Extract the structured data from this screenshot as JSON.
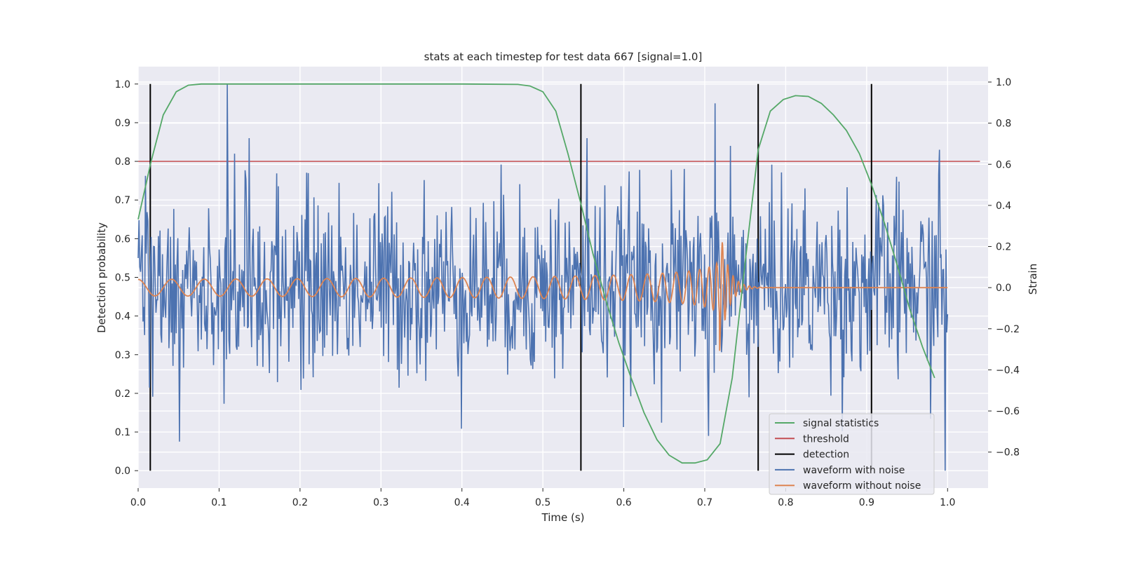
{
  "chart_data": {
    "type": "line",
    "title": "stats at each timestep for test data 667 [signal=1.0]",
    "xlabel": "Time (s)",
    "ylabel": "Detection probability",
    "y2label": "Strain",
    "xlim": [
      0.0,
      1.05
    ],
    "ylim": [
      -0.045,
      1.045
    ],
    "y2lim": [
      -0.975,
      1.075
    ],
    "xticks": [
      0.0,
      0.1,
      0.2,
      0.3,
      0.4,
      0.5,
      0.6,
      0.7,
      0.8,
      0.9,
      1.0
    ],
    "xtick_labels": [
      "0.0",
      "0.1",
      "0.2",
      "0.3",
      "0.4",
      "0.5",
      "0.6",
      "0.7",
      "0.8",
      "0.9",
      "1.0"
    ],
    "yticks": [
      0.0,
      0.1,
      0.2,
      0.3,
      0.4,
      0.5,
      0.6,
      0.7,
      0.8,
      0.9,
      1.0
    ],
    "ytick_labels": [
      "0.0",
      "0.1",
      "0.2",
      "0.3",
      "0.4",
      "0.5",
      "0.6",
      "0.7",
      "0.8",
      "0.9",
      "1.0"
    ],
    "y2ticks": [
      -0.8,
      -0.6,
      -0.4,
      -0.2,
      0.0,
      0.2,
      0.4,
      0.6,
      0.8,
      1.0
    ],
    "y2tick_labels": [
      "−0.8",
      "−0.6",
      "−0.4",
      "−0.2",
      "0.0",
      "0.2",
      "0.4",
      "0.6",
      "0.8",
      "1.0"
    ],
    "grid": true,
    "legend_position": "lower-right",
    "legend": [
      "signal statistics",
      "threshold",
      "detection",
      "waveform with noise",
      "waveform without noise"
    ],
    "colors": {
      "signal_statistics": "#55a868",
      "threshold": "#c44e52",
      "detection": "#000000",
      "waveform_with_noise": "#4c72b0",
      "waveform_without_noise": "#dd8452",
      "plot_background": "#eaeaf2",
      "grid": "#ffffff"
    },
    "signal_statistics": {
      "x": [
        0.0,
        0.016,
        0.031,
        0.047,
        0.062,
        0.078,
        0.094,
        0.109,
        0.125,
        0.2,
        0.3,
        0.4,
        0.469,
        0.484,
        0.5,
        0.516,
        0.531,
        0.547,
        0.562,
        0.578,
        0.594,
        0.609,
        0.625,
        0.641,
        0.656,
        0.672,
        0.688,
        0.703,
        0.719,
        0.734,
        0.75,
        0.766,
        0.781,
        0.797,
        0.812,
        0.828,
        0.844,
        0.859,
        0.875,
        0.891,
        0.906,
        0.922,
        0.938,
        0.953,
        0.969,
        0.984
      ],
      "y": [
        0.65,
        0.8,
        0.92,
        0.98,
        0.997,
        1.0,
        1.0,
        1.0,
        1.0,
        1.0,
        1.0,
        1.0,
        0.999,
        0.995,
        0.98,
        0.93,
        0.82,
        0.69,
        0.56,
        0.44,
        0.33,
        0.24,
        0.15,
        0.08,
        0.04,
        0.02,
        0.02,
        0.028,
        0.07,
        0.24,
        0.54,
        0.83,
        0.93,
        0.96,
        0.97,
        0.968,
        0.95,
        0.92,
        0.88,
        0.82,
        0.74,
        0.64,
        0.53,
        0.42,
        0.32,
        0.24
      ]
    },
    "threshold": {
      "x": [
        0.0,
        1.04
      ],
      "y": [
        0.8,
        0.8
      ]
    },
    "detections": {
      "x": [
        0.015,
        0.547,
        0.766,
        0.906
      ],
      "y_range": [
        0.0,
        1.0
      ]
    },
    "waveform_without_noise": {
      "t_merger": 0.718,
      "t_end": 1.0,
      "amplitude_start": 0.04,
      "amplitude_peak": 0.32,
      "frequency_start_hz": 24,
      "frequency_peak_hz": 150,
      "ringdown_decay_s": 0.01
    },
    "waveform_with_noise": {
      "t_start": 0.0,
      "t_end": 1.0,
      "samples": 1000,
      "noise_sigma": 0.22,
      "peaks": [
        {
          "x": 0.11,
          "y": 1.0
        },
        {
          "x": 0.713,
          "y": 0.95
        },
        {
          "x": 0.137,
          "y": 0.86
        },
        {
          "x": 0.555,
          "y": 0.86
        },
        {
          "x": 0.732,
          "y": 0.84
        },
        {
          "x": 0.99,
          "y": 0.83
        },
        {
          "x": 0.051,
          "y": 0.075
        },
        {
          "x": 0.705,
          "y": 0.09
        },
        {
          "x": 0.997,
          "y": 0.0
        }
      ]
    }
  }
}
